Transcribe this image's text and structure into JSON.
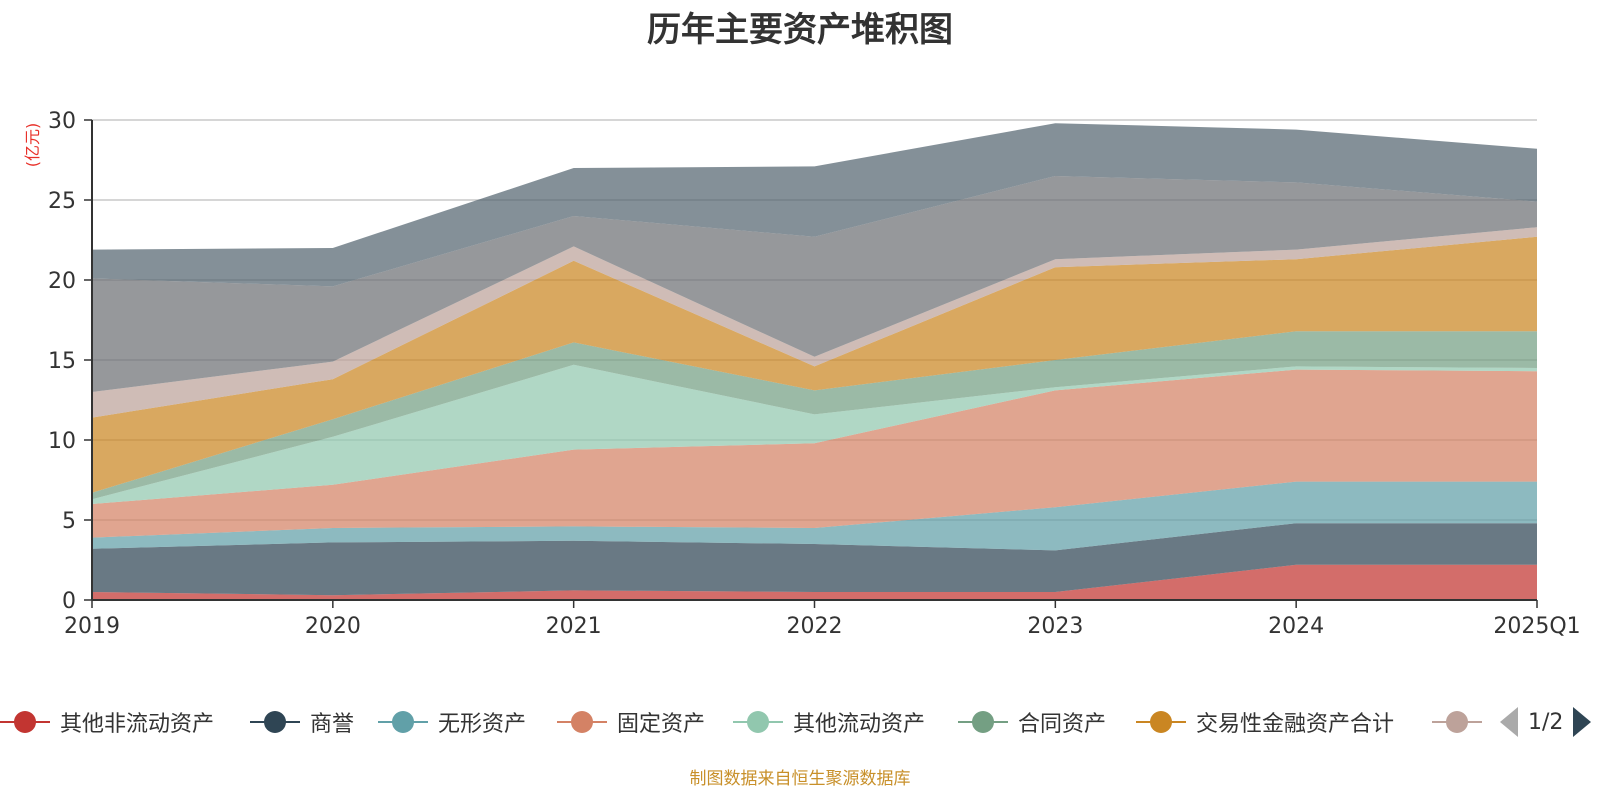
{
  "chart_data": {
    "type": "area",
    "stacked": true,
    "title": "历年主要资产堆积图",
    "ylabel": "(亿元)",
    "ylim": [
      0,
      30
    ],
    "yticks": [
      0,
      5,
      10,
      15,
      20,
      25,
      30
    ],
    "categories": [
      "2019",
      "2020",
      "2021",
      "2022",
      "2023",
      "2024",
      "2025Q1"
    ],
    "series": [
      {
        "name": "其他非流动资产",
        "color": "#c23531",
        "values": [
          0.5,
          0.3,
          0.6,
          0.5,
          0.5,
          2.2,
          2.2
        ]
      },
      {
        "name": "商誉",
        "color": "#2f4554",
        "values": [
          2.7,
          3.3,
          3.1,
          3.0,
          2.6,
          2.6,
          2.6
        ]
      },
      {
        "name": "无形资产",
        "color": "#61a0a8",
        "values": [
          0.7,
          0.9,
          0.9,
          1.0,
          2.7,
          2.6,
          2.6
        ]
      },
      {
        "name": "固定资产",
        "color": "#d48265",
        "values": [
          2.1,
          2.7,
          4.8,
          5.3,
          7.3,
          7.0,
          6.9
        ]
      },
      {
        "name": "其他流动资产",
        "color": "#91c7ae",
        "values": [
          0.3,
          3.0,
          5.3,
          1.8,
          0.2,
          0.2,
          0.2
        ]
      },
      {
        "name": "合同资产",
        "color": "#749f83",
        "values": [
          0.4,
          1.1,
          1.4,
          1.5,
          1.7,
          2.2,
          2.3
        ]
      },
      {
        "name": "交易性金融资产合计",
        "color": "#ca8622",
        "values": [
          4.7,
          2.5,
          5.1,
          1.5,
          5.8,
          4.5,
          5.9
        ]
      },
      {
        "name": "",
        "color": "#bda29a",
        "values": [
          1.6,
          1.1,
          0.9,
          0.6,
          0.5,
          0.6,
          0.6
        ]
      },
      {
        "name": "",
        "color": "#6e7074",
        "values": [
          7.1,
          4.7,
          1.9,
          7.5,
          5.2,
          4.2,
          1.6
        ]
      },
      {
        "name": "",
        "color": "#546570",
        "values": [
          1.8,
          2.4,
          3.0,
          4.4,
          3.3,
          3.3,
          3.3
        ]
      }
    ],
    "legend_page": "1/2",
    "source": "制图数据来自恒生聚源数据库"
  }
}
